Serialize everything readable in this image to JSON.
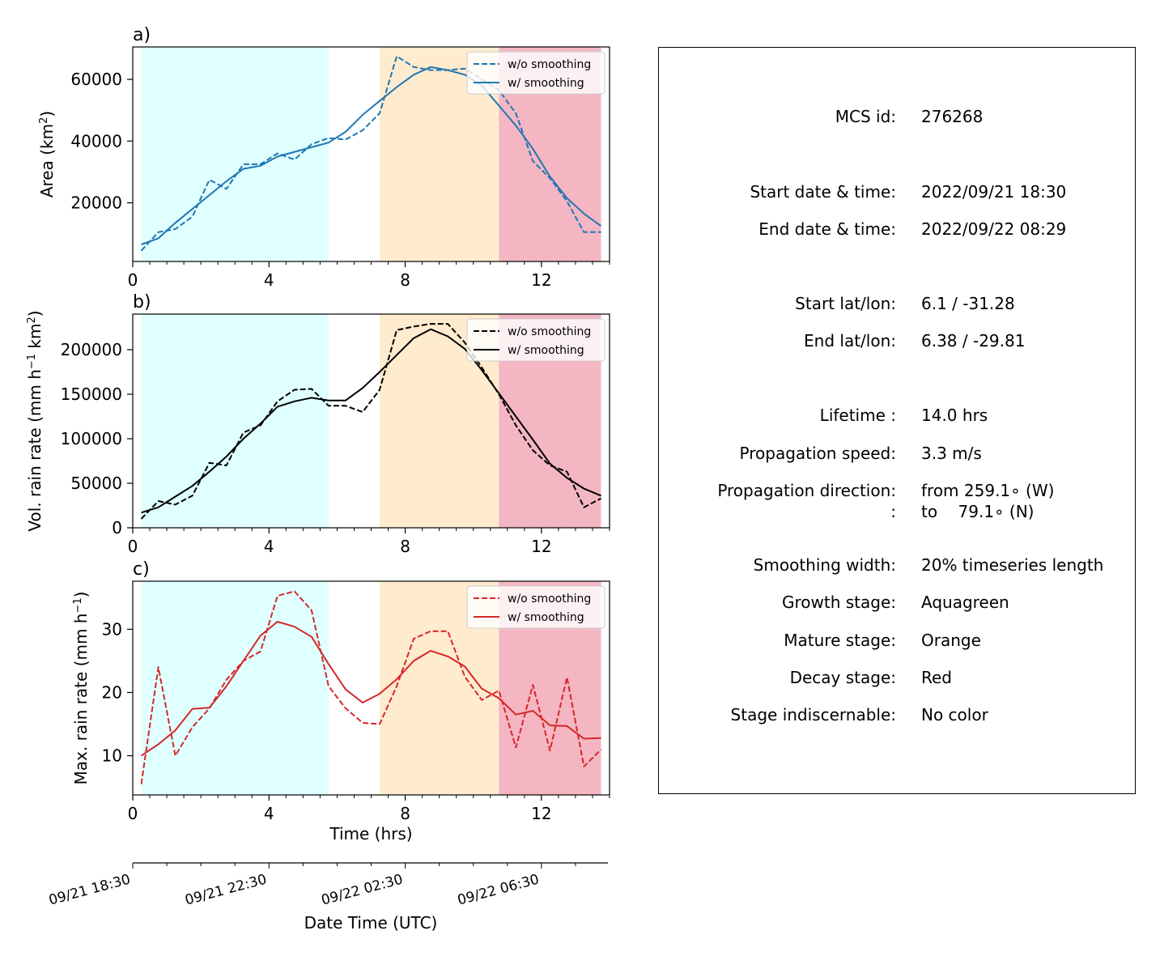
{
  "chart_data": [
    {
      "type": "line",
      "panel_label": "a)",
      "ylabel": "Area  (km²)",
      "xlim": [
        0,
        14.0
      ],
      "ylim": [
        1000,
        70500
      ],
      "xticks": [
        0,
        4,
        8,
        12
      ],
      "yticks": [
        20000,
        40000,
        60000
      ],
      "minor_x_step": 0.5,
      "legend": {
        "position": "top-right"
      },
      "stages": [
        {
          "name": "Growth stage",
          "x0": 0.25,
          "x1": 5.75,
          "color": "#e0ffff"
        },
        {
          "name": "Mature stage",
          "x0": 7.25,
          "x1": 10.75,
          "color": "#ffebcd"
        },
        {
          "name": "Decay stage",
          "x0": 10.75,
          "x1": 13.75,
          "color": "#f4b6c2"
        }
      ],
      "series": [
        {
          "name": "w/o smoothing",
          "style": "dashed",
          "color": "#1f77b4",
          "x": [
            0.25,
            0.75,
            1.25,
            1.75,
            2.25,
            2.75,
            3.25,
            3.75,
            4.25,
            4.75,
            5.25,
            5.75,
            6.25,
            6.75,
            7.25,
            7.75,
            8.25,
            8.75,
            9.25,
            9.75,
            10.25,
            10.75,
            11.25,
            11.75,
            12.25,
            12.75,
            13.25,
            13.75
          ],
          "y": [
            4500,
            10500,
            11500,
            15500,
            27500,
            24500,
            32500,
            32500,
            36000,
            34000,
            39000,
            41000,
            40500,
            43500,
            49000,
            67500,
            64000,
            63000,
            63000,
            63500,
            60000,
            56500,
            49000,
            33500,
            28000,
            20500,
            10500,
            10500
          ]
        },
        {
          "name": "w/ smoothing",
          "style": "solid",
          "color": "#1f77b4",
          "x": [
            0.25,
            0.75,
            1.25,
            1.75,
            2.25,
            2.75,
            3.25,
            3.75,
            4.25,
            4.75,
            5.25,
            5.75,
            6.25,
            6.75,
            7.25,
            7.75,
            8.25,
            8.75,
            9.25,
            9.75,
            10.25,
            10.75,
            11.25,
            11.75,
            12.25,
            12.75,
            13.25,
            13.75
          ],
          "y": [
            6500,
            8500,
            13500,
            18000,
            22500,
            27000,
            31000,
            32000,
            35000,
            36500,
            38000,
            39500,
            43000,
            48500,
            53000,
            57500,
            61500,
            64000,
            63000,
            61500,
            58000,
            51500,
            45000,
            37500,
            28500,
            21500,
            16500,
            12500
          ]
        }
      ]
    },
    {
      "type": "line",
      "panel_label": "b)",
      "ylabel": "Vol. rain rate (mm h⁻¹ km²)",
      "xlim": [
        0,
        14.0
      ],
      "ylim": [
        0,
        240000
      ],
      "xticks": [
        0,
        4,
        8,
        12
      ],
      "yticks": [
        0,
        50000,
        100000,
        150000,
        200000
      ],
      "minor_x_step": 0.5,
      "legend": {
        "position": "top-right"
      },
      "stages": [
        {
          "name": "Growth stage",
          "x0": 0.25,
          "x1": 5.75,
          "color": "#e0ffff"
        },
        {
          "name": "Mature stage",
          "x0": 7.25,
          "x1": 10.75,
          "color": "#ffebcd"
        },
        {
          "name": "Decay stage",
          "x0": 10.75,
          "x1": 13.75,
          "color": "#f4b6c2"
        }
      ],
      "series": [
        {
          "name": "w/o smoothing",
          "style": "dashed",
          "color": "#000000",
          "x": [
            0.25,
            0.75,
            1.25,
            1.75,
            2.25,
            2.75,
            3.25,
            3.75,
            4.25,
            4.75,
            5.25,
            5.75,
            6.25,
            6.75,
            7.25,
            7.75,
            8.25,
            8.75,
            9.25,
            9.75,
            10.25,
            10.75,
            11.25,
            11.75,
            12.25,
            12.75,
            13.25,
            13.75
          ],
          "y": [
            10000,
            30000,
            26000,
            36000,
            73000,
            70000,
            107000,
            115000,
            142000,
            155000,
            156000,
            137000,
            137000,
            130000,
            155000,
            222000,
            226000,
            229000,
            229000,
            208000,
            180000,
            150000,
            115000,
            87000,
            70000,
            63000,
            23000,
            33000
          ]
        },
        {
          "name": "w/ smoothing",
          "style": "solid",
          "color": "#000000",
          "x": [
            0.25,
            0.75,
            1.25,
            1.75,
            2.25,
            2.75,
            3.25,
            3.75,
            4.25,
            4.75,
            5.25,
            5.75,
            6.25,
            6.75,
            7.25,
            7.75,
            8.25,
            8.75,
            9.25,
            9.75,
            10.25,
            10.75,
            11.25,
            11.75,
            12.25,
            12.75,
            13.25,
            13.75
          ],
          "y": [
            17000,
            23000,
            35000,
            47000,
            63000,
            80000,
            100000,
            117000,
            136000,
            142000,
            146000,
            143000,
            143000,
            157000,
            175000,
            194000,
            213000,
            223000,
            215000,
            201000,
            177000,
            151000,
            125000,
            99000,
            72000,
            56000,
            44000,
            36000
          ]
        }
      ]
    },
    {
      "type": "line",
      "panel_label": "c)",
      "ylabel": "Max. rain rate  (mm h⁻¹)",
      "xlabel": "Time (hrs)",
      "xlim": [
        0,
        14.0
      ],
      "ylim": [
        3.8,
        37.6
      ],
      "xticks": [
        0,
        4,
        8,
        12
      ],
      "yticks": [
        10,
        20,
        30
      ],
      "minor_x_step": 0.5,
      "legend": {
        "position": "top-right"
      },
      "stages": [
        {
          "name": "Growth stage",
          "x0": 0.25,
          "x1": 5.75,
          "color": "#e0ffff"
        },
        {
          "name": "Mature stage",
          "x0": 7.25,
          "x1": 10.75,
          "color": "#ffebcd"
        },
        {
          "name": "Decay stage",
          "x0": 10.75,
          "x1": 13.75,
          "color": "#f4b6c2"
        }
      ],
      "series": [
        {
          "name": "w/o smoothing",
          "style": "dashed",
          "color": "#d62728",
          "x": [
            0.25,
            0.75,
            1.25,
            1.75,
            2.25,
            2.75,
            3.25,
            3.75,
            4.25,
            4.75,
            5.25,
            5.75,
            6.25,
            6.75,
            7.25,
            7.75,
            8.25,
            8.75,
            9.25,
            9.75,
            10.25,
            10.75,
            11.25,
            11.75,
            12.25,
            12.75,
            13.25,
            13.75
          ],
          "y": [
            5.5,
            24,
            10,
            14.5,
            17.5,
            22,
            25,
            26.5,
            35.3,
            36,
            33,
            21,
            17.5,
            15.2,
            15,
            21,
            28.5,
            29.7,
            29.7,
            22.5,
            18.8,
            20.3,
            11.3,
            21.2,
            10.8,
            22.4,
            8.3,
            11
          ]
        },
        {
          "name": "w/ smoothing",
          "style": "solid",
          "color": "#d62728",
          "x": [
            0.25,
            0.75,
            1.25,
            1.75,
            2.25,
            2.75,
            3.25,
            3.75,
            4.25,
            4.75,
            5.25,
            5.75,
            6.25,
            6.75,
            7.25,
            7.75,
            8.25,
            8.75,
            9.25,
            9.75,
            10.25,
            10.75,
            11.25,
            11.75,
            12.25,
            12.75,
            13.25,
            13.75
          ],
          "y": [
            10,
            11.8,
            14,
            17.4,
            17.6,
            21,
            25,
            29,
            31.2,
            30.4,
            28.8,
            24.5,
            20.5,
            18.4,
            19.8,
            22.1,
            25,
            26.6,
            25.7,
            24.1,
            20.6,
            19.1,
            16.5,
            17.1,
            14.8,
            14.7,
            12.7,
            12.8
          ]
        }
      ]
    },
    {
      "type": "axis",
      "xlabel": "Date Time (UTC)",
      "xlim": [
        0,
        14.0
      ],
      "tick_x": [
        0,
        4,
        8,
        12
      ],
      "tick_labels": [
        "09/21 18:30",
        "09/21 22:30",
        "09/22 02:30",
        "09/22 06:30"
      ],
      "minor_x_step": 1
    }
  ],
  "info": {
    "rows": [
      {
        "label": "MCS id:",
        "value": "276268"
      },
      {
        "label": "Start date & time:",
        "value": "2022/09/21 18:30"
      },
      {
        "label": "End date & time:",
        "value": "2022/09/22 08:29"
      },
      {
        "label": "Start lat/lon:",
        "value": "6.1 / -31.28"
      },
      {
        "label": "End lat/lon:",
        "value": "6.38 / -29.81"
      },
      {
        "label": "Lifetime :",
        "value": "14.0 hrs"
      },
      {
        "label": "Propagation speed:",
        "value": "3.3 m/s"
      },
      {
        "label": "Propagation direction:",
        "value": "from 259.1∘ (W)"
      },
      {
        "label": ":",
        "value": "to    79.1∘ (N)"
      },
      {
        "label": "Smoothing width:",
        "value": "20% timeseries length"
      },
      {
        "label": "Growth stage:",
        "value": "Aquagreen"
      },
      {
        "label": "Mature stage:",
        "value": "Orange"
      },
      {
        "label": "Decay stage:",
        "value": "Red"
      },
      {
        "label": "Stage indiscernable:",
        "value": "No color"
      }
    ]
  }
}
